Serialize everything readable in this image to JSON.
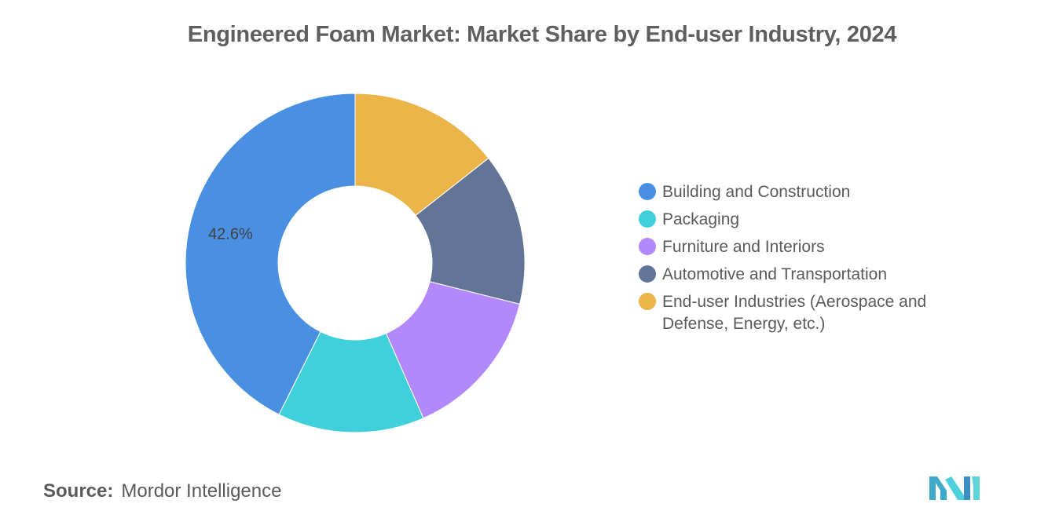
{
  "title": "Engineered Foam Market: Market Share by End-user Industry, 2024",
  "source": {
    "label": "Source:",
    "value": "Mordor Intelligence"
  },
  "logo": {
    "icon": "mordor-intelligence-logo"
  },
  "chart_data": {
    "type": "pie",
    "donut": true,
    "title": "Engineered Foam Market: Market Share by End-user Industry, 2024",
    "legend_position": "right",
    "series": [
      {
        "name": "Building and Construction",
        "value": 42.6,
        "color": "#4a90e2",
        "label": "42.6%"
      },
      {
        "name": "Packaging",
        "value": 14.0,
        "color": "#40d0dc",
        "label": ""
      },
      {
        "name": "Furniture and Interiors",
        "value": 14.5,
        "color": "#b388fb",
        "label": ""
      },
      {
        "name": "Automotive and Transportation",
        "value": 14.5,
        "color": "#637597",
        "label": ""
      },
      {
        "name": "End-user Industries (Aerospace and Defense, Energy, etc.)",
        "value": 14.4,
        "color": "#ebb54a",
        "label": ""
      }
    ]
  }
}
